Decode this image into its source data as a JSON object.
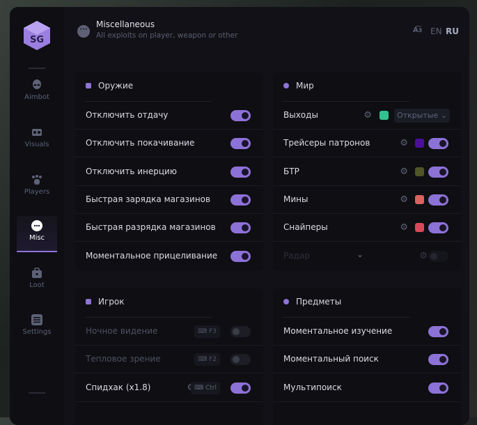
{
  "header": {
    "title": "Miscellaneous",
    "subtitle": "All exploits on player, weapon or other",
    "lang_icon": "translate-icon",
    "lang_en": "EN",
    "lang_ru": "RU"
  },
  "sidebar": {
    "logo": "SG",
    "items": [
      {
        "label": "Aimbot",
        "icon": "alien-icon"
      },
      {
        "label": "Visuals",
        "icon": "vr-headset-icon"
      },
      {
        "label": "Players",
        "icon": "users-icon"
      },
      {
        "label": "Misc",
        "icon": "dots-icon",
        "active": true
      },
      {
        "label": "Loot",
        "icon": "briefcase-icon"
      },
      {
        "label": "Settings",
        "icon": "list-icon"
      }
    ]
  },
  "weapon": {
    "title": "Оружие",
    "rows": [
      {
        "label": "Отключить отдачу",
        "on": true
      },
      {
        "label": "Отключить покачивание",
        "on": true
      },
      {
        "label": "Отключить инерцию",
        "on": true
      },
      {
        "label": "Быстрая зарядка магазинов",
        "on": true
      },
      {
        "label": "Быстрая разрядка магазинов",
        "on": true
      },
      {
        "label": "Моментальное прицеливание",
        "on": true
      }
    ]
  },
  "world": {
    "title": "Мир",
    "rows": [
      {
        "label": "Выходы",
        "color": "#2fc28f",
        "select": "Открытые"
      },
      {
        "label": "Трейсеры патронов",
        "color": "#4b0f9a",
        "on": true
      },
      {
        "label": "БТР",
        "color": "#4f5524",
        "on": true
      },
      {
        "label": "Мины",
        "color": "#d9625f",
        "on": true
      },
      {
        "label": "Снайперы",
        "color": "#d9485a",
        "on": true
      },
      {
        "label": "Радар",
        "on": false
      }
    ]
  },
  "player": {
    "title": "Игрок",
    "rows": [
      {
        "label": "Ночное видение",
        "key": "F3",
        "on": false
      },
      {
        "label": "Тепловое зрение",
        "key": "F2",
        "on": false
      },
      {
        "label": "Спидхак (x1.8)",
        "key": "Ctrl",
        "on": true
      }
    ]
  },
  "items": {
    "title": "Предметы",
    "rows": [
      {
        "label": "Моментальное изучение",
        "on": true
      },
      {
        "label": "Моментальный поиск",
        "on": true
      },
      {
        "label": "Мультипоиск",
        "on": true
      }
    ]
  },
  "colors": {
    "accent": "#8c72d6"
  }
}
